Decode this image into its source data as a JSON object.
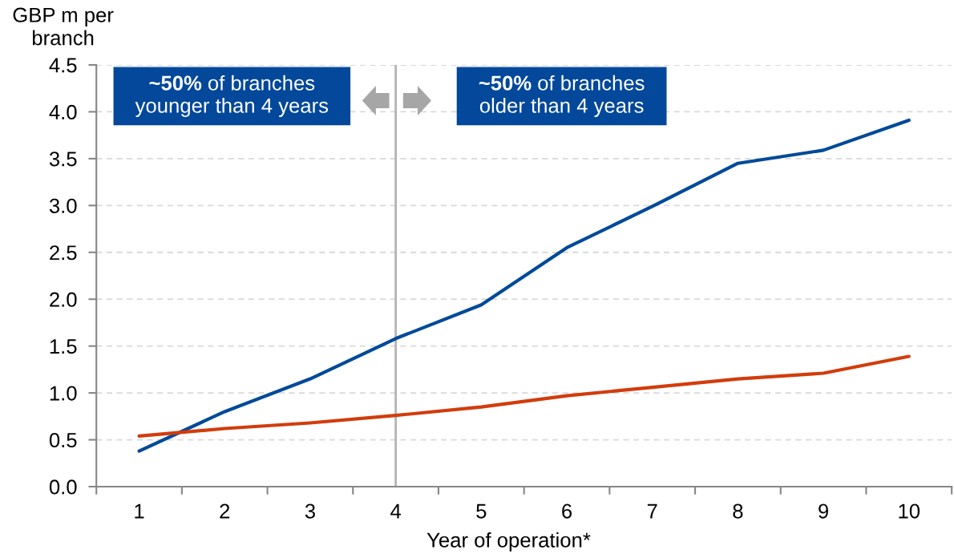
{
  "chart_data": {
    "type": "line",
    "xlabel": "Year of operation*",
    "ylabel": "GBP m per\nbranch",
    "categories": [
      "1",
      "2",
      "3",
      "4",
      "5",
      "6",
      "7",
      "8",
      "9",
      "10"
    ],
    "ylim": [
      0,
      4.5
    ],
    "yticks": [
      {
        "value": 0,
        "label": "0.0"
      },
      0.5,
      {
        "value": 1,
        "label": "1.0"
      },
      1.5,
      {
        "value": 2,
        "label": "2.0"
      },
      2.5,
      {
        "value": 3,
        "label": "3.0"
      },
      3.5,
      {
        "value": 4,
        "label": "4.0"
      },
      4.5
    ],
    "grid": "y",
    "series": [
      {
        "color": "#004a98",
        "values": [
          0.38,
          0.8,
          1.15,
          1.58,
          1.94,
          2.55,
          2.99,
          3.45,
          3.59,
          3.91
        ]
      },
      {
        "color": "#d23c0c",
        "values": [
          0.54,
          0.62,
          0.68,
          0.76,
          0.85,
          0.97,
          1.06,
          1.15,
          1.21,
          1.39
        ]
      }
    ],
    "ref_lines": [
      {
        "axis": "x",
        "value": "4",
        "color": "#b3b3b3"
      }
    ],
    "annotations": [
      "~50% of branches\nyounger than 4 years",
      "~50% of branches\nolder than 4 years"
    ]
  }
}
